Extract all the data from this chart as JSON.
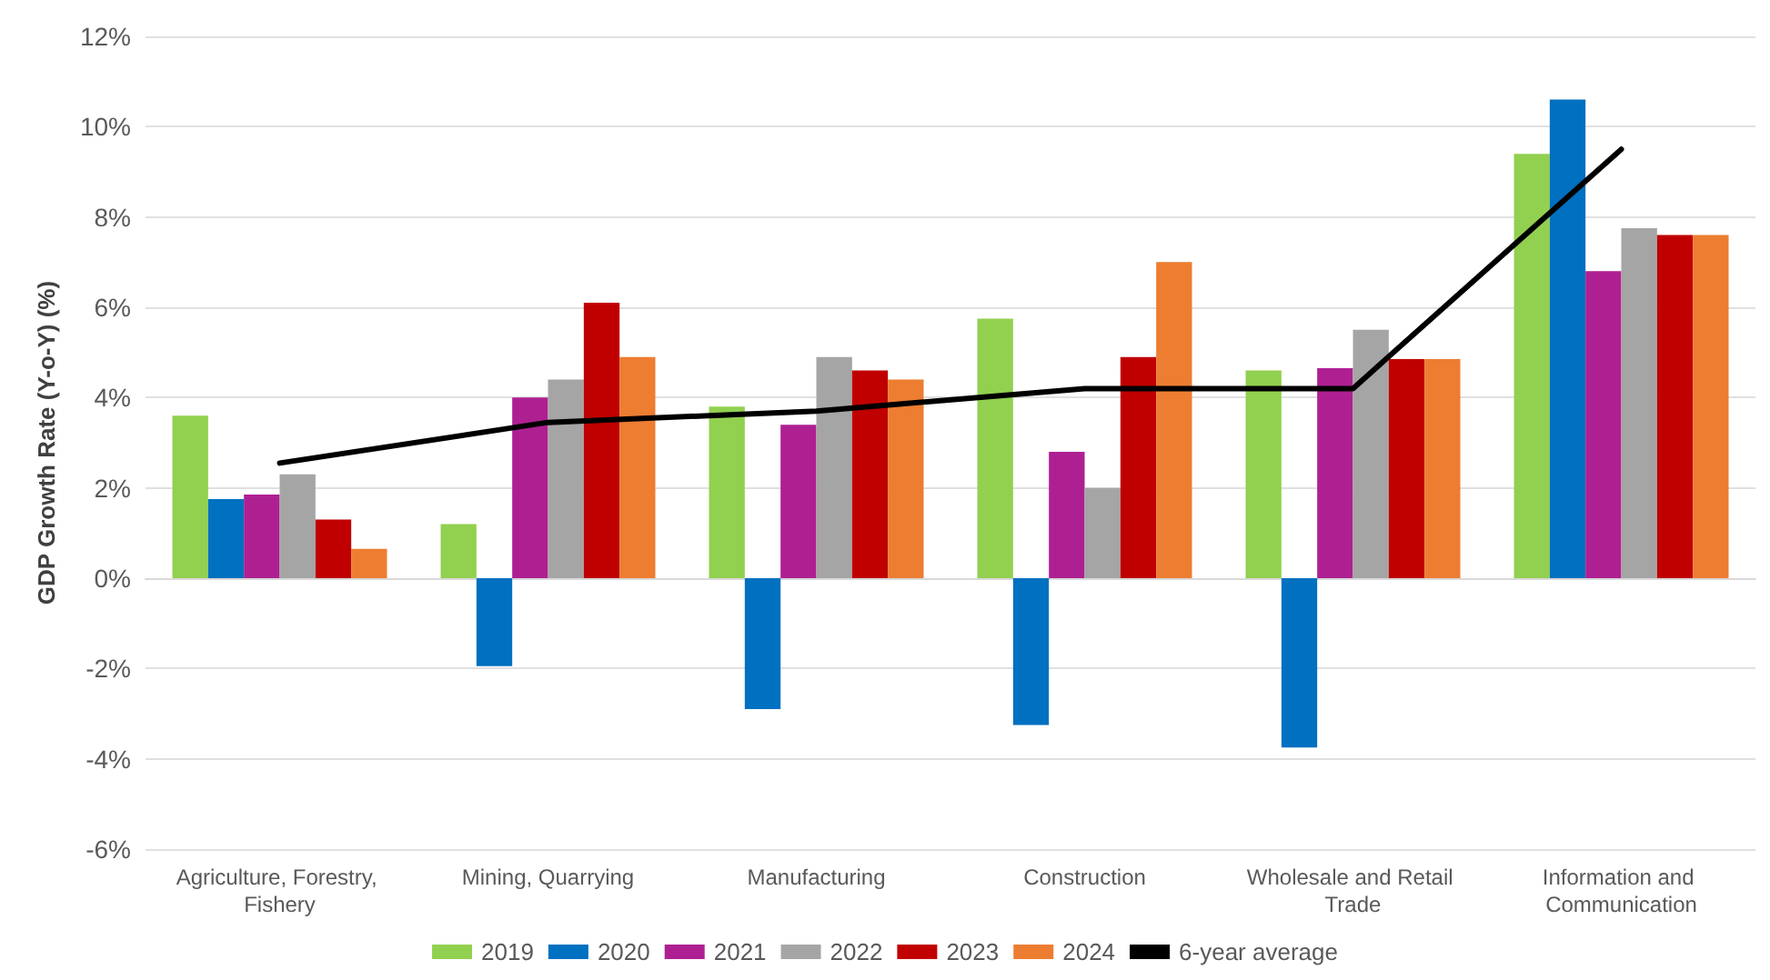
{
  "chart_data": {
    "type": "bar",
    "ylabel": "GDP Growth Rate (Y-o-Y) (%)",
    "categories": [
      "Agriculture, Forestry, Fishery",
      "Mining, Quarrying",
      "Manufacturing",
      "Construction",
      "Wholesale and Retail Trade",
      "Information and Communication"
    ],
    "series": [
      {
        "name": "2019",
        "color": "#92d050",
        "values": [
          3.6,
          1.2,
          3.8,
          5.75,
          4.6,
          9.4
        ]
      },
      {
        "name": "2020",
        "color": "#0070c0",
        "values": [
          1.75,
          -1.95,
          -2.9,
          -3.25,
          -3.75,
          10.6
        ]
      },
      {
        "name": "2021",
        "color": "#ae2092",
        "values": [
          1.85,
          4.0,
          3.4,
          2.8,
          4.65,
          6.8
        ]
      },
      {
        "name": "2022",
        "color": "#a5a5a5",
        "values": [
          2.3,
          4.4,
          4.9,
          2.0,
          5.5,
          7.75
        ]
      },
      {
        "name": "2023",
        "color": "#c00000",
        "values": [
          1.3,
          6.1,
          4.6,
          4.9,
          4.85,
          7.6
        ]
      },
      {
        "name": "2024",
        "color": "#ed7d31",
        "values": [
          0.65,
          4.9,
          4.4,
          7.0,
          4.85,
          7.6
        ]
      },
      {
        "name": "6-year average",
        "type": "line",
        "color": "#000000",
        "values": [
          2.55,
          3.45,
          3.7,
          4.2,
          4.2,
          9.5
        ]
      }
    ],
    "ylim": [
      -6,
      12
    ],
    "yticks": [
      {
        "value": -6,
        "label": "-6%"
      },
      {
        "value": -4,
        "label": "-4%"
      },
      {
        "value": -2,
        "label": "-2%"
      },
      {
        "value": 0,
        "label": "0%"
      },
      {
        "value": 2,
        "label": "2%"
      },
      {
        "value": 4,
        "label": "4%"
      },
      {
        "value": 6,
        "label": "6%"
      },
      {
        "value": 8,
        "label": "8%"
      },
      {
        "value": 10,
        "label": "10%"
      },
      {
        "value": 12,
        "label": "12%"
      }
    ],
    "grid": "y",
    "legend": "bottom",
    "marker": "none",
    "line_style": "solid"
  }
}
